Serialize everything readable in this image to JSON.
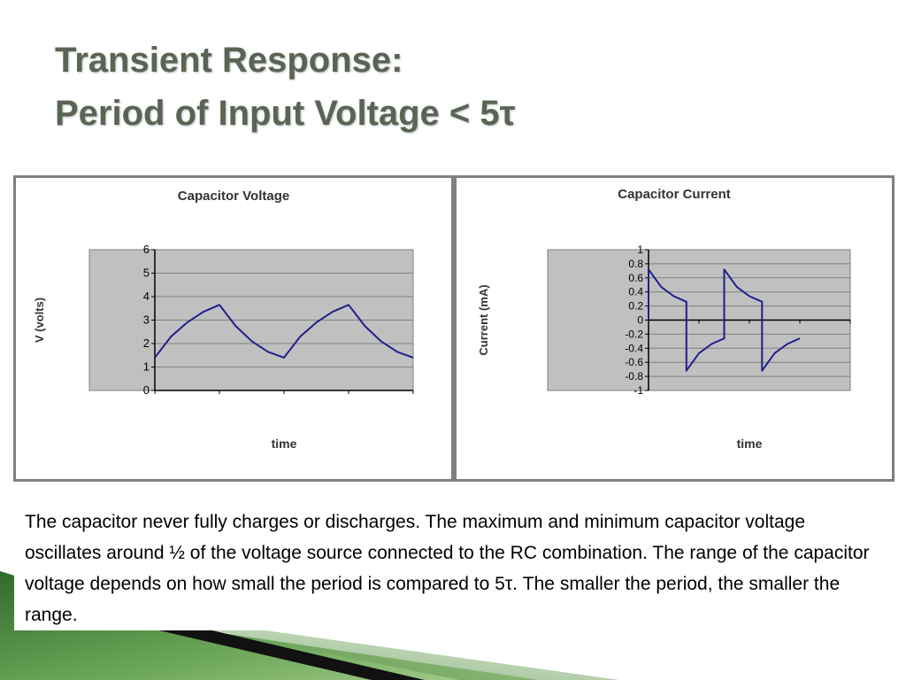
{
  "slide": {
    "title_line1": "Transient Response:",
    "title_line2": "Period of Input Voltage <  5τ",
    "body": "The capacitor never fully charges or discharges.  The maximum and minimum capacitor voltage oscillates around ½ of the voltage source connected to the RC combination.  The range of the capacitor voltage depends on how small the period is compared to 5τ.  The  smaller the period, the smaller the range."
  },
  "colors": {
    "title": "#5a6454",
    "line": "#1f1f8c",
    "plot_area": "#c0c0c0",
    "gridline": "#808080",
    "accent_green": "#4f8a3a"
  },
  "chart_data": [
    {
      "type": "line",
      "title": "Capacitor Voltage",
      "xlabel": "time",
      "ylabel": "V (volts)",
      "ylim": [
        0,
        6
      ],
      "yticks": [
        0,
        1,
        2,
        3,
        4,
        5,
        6
      ],
      "xlim": [
        0,
        4
      ],
      "grid": true,
      "series": [
        {
          "x": [
            0,
            0.25,
            0.5,
            0.75,
            1.0,
            1.25,
            1.5,
            1.75,
            2.0,
            2.25,
            2.5,
            2.75,
            3.0,
            3.25,
            3.5,
            3.75,
            4.0
          ],
          "values": [
            1.4,
            2.3,
            2.9,
            3.35,
            3.65,
            2.75,
            2.1,
            1.65,
            1.4,
            2.3,
            2.9,
            3.35,
            3.65,
            2.75,
            2.1,
            1.65,
            1.4
          ]
        }
      ]
    },
    {
      "type": "line",
      "title": "Capacitor Current",
      "xlabel": "time",
      "ylabel": "Current (mA)",
      "ylim": [
        -1,
        1
      ],
      "yticks": [
        -1,
        -0.8,
        -0.6,
        -0.4,
        -0.2,
        0,
        0.2,
        0.4,
        0.6,
        0.8,
        1
      ],
      "ytick_labels": [
        "-1",
        "-0.8",
        "-0.6",
        "-0.4",
        "-0.2",
        "0",
        "0.2",
        "0.4",
        "0.6",
        "0.8",
        "1"
      ],
      "xlim": [
        0,
        4
      ],
      "grid": true,
      "series": [
        {
          "x": [
            0,
            0,
            0.25,
            0.5,
            0.75,
            0.75,
            1.0,
            1.25,
            1.5,
            1.5,
            1.75,
            2.0,
            2.25,
            2.25,
            2.5,
            2.75,
            3.0
          ],
          "values": [
            0,
            0.72,
            0.47,
            0.34,
            0.26,
            -0.72,
            -0.47,
            -0.34,
            -0.26,
            0.72,
            0.47,
            0.34,
            0.26,
            -0.72,
            -0.47,
            -0.34,
            -0.26
          ]
        }
      ]
    }
  ]
}
